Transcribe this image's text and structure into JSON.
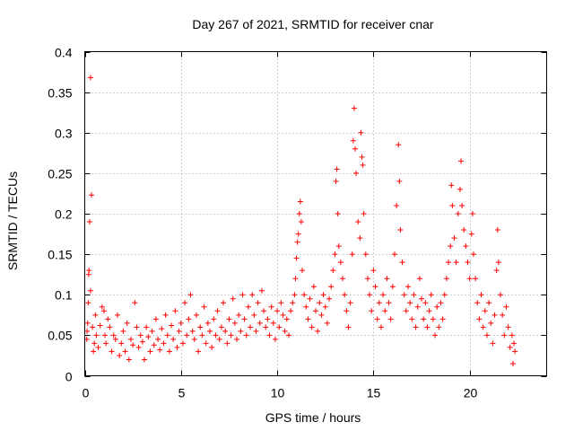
{
  "chart_data": {
    "type": "scatter",
    "title": "Day 267 of 2021, SRMTID for receiver cnar",
    "xlabel": "GPS time / hours",
    "ylabel": "SRMTID / TECUs",
    "xlim": [
      0,
      24
    ],
    "ylim": [
      0,
      0.4
    ],
    "xticks": [
      0,
      5,
      10,
      15,
      20
    ],
    "yticks": [
      0,
      0.05,
      0.1,
      0.15,
      0.2,
      0.25,
      0.3,
      0.35,
      0.4
    ],
    "xtick_labels": [
      "0",
      "5",
      "10",
      "15",
      "20"
    ],
    "ytick_labels": [
      "0",
      "0.05",
      "0.1",
      "0.15",
      "0.2",
      "0.25",
      "0.3",
      "0.35",
      "0.4"
    ],
    "grid": true,
    "marker": "+",
    "color": "#ff0000",
    "series": [
      {
        "name": "SRMTID",
        "points": [
          [
            0.1,
            0.045
          ],
          [
            0.12,
            0.055
          ],
          [
            0.15,
            0.065
          ],
          [
            0.18,
            0.09
          ],
          [
            0.2,
            0.125
          ],
          [
            0.22,
            0.13
          ],
          [
            0.25,
            0.19
          ],
          [
            0.3,
            0.368
          ],
          [
            0.3,
            0.105
          ],
          [
            0.35,
            0.223
          ],
          [
            0.4,
            0.06
          ],
          [
            0.45,
            0.03
          ],
          [
            0.5,
            0.04
          ],
          [
            0.55,
            0.075
          ],
          [
            0.6,
            0.05
          ],
          [
            0.7,
            0.035
          ],
          [
            0.8,
            0.062
          ],
          [
            0.9,
            0.085
          ],
          [
            1.0,
            0.08
          ],
          [
            1.05,
            0.05
          ],
          [
            1.1,
            0.04
          ],
          [
            1.2,
            0.07
          ],
          [
            1.3,
            0.06
          ],
          [
            1.4,
            0.03
          ],
          [
            1.5,
            0.05
          ],
          [
            1.6,
            0.045
          ],
          [
            1.7,
            0.075
          ],
          [
            1.8,
            0.025
          ],
          [
            1.9,
            0.04
          ],
          [
            2.0,
            0.055
          ],
          [
            2.1,
            0.03
          ],
          [
            2.2,
            0.065
          ],
          [
            2.3,
            0.02
          ],
          [
            2.4,
            0.045
          ],
          [
            2.5,
            0.038
          ],
          [
            2.6,
            0.09
          ],
          [
            2.7,
            0.06
          ],
          [
            2.8,
            0.035
          ],
          [
            2.9,
            0.05
          ],
          [
            3.0,
            0.042
          ],
          [
            3.1,
            0.02
          ],
          [
            3.2,
            0.06
          ],
          [
            3.3,
            0.048
          ],
          [
            3.4,
            0.03
          ],
          [
            3.5,
            0.055
          ],
          [
            3.6,
            0.038
          ],
          [
            3.7,
            0.07
          ],
          [
            3.8,
            0.045
          ],
          [
            3.9,
            0.032
          ],
          [
            4.0,
            0.058
          ],
          [
            4.1,
            0.04
          ],
          [
            4.2,
            0.075
          ],
          [
            4.3,
            0.05
          ],
          [
            4.4,
            0.03
          ],
          [
            4.5,
            0.062
          ],
          [
            4.6,
            0.045
          ],
          [
            4.7,
            0.08
          ],
          [
            4.8,
            0.035
          ],
          [
            4.9,
            0.055
          ],
          [
            5.0,
            0.065
          ],
          [
            5.1,
            0.04
          ],
          [
            5.2,
            0.09
          ],
          [
            5.3,
            0.05
          ],
          [
            5.4,
            0.07
          ],
          [
            5.5,
            0.1
          ],
          [
            5.6,
            0.055
          ],
          [
            5.7,
            0.045
          ],
          [
            5.8,
            0.075
          ],
          [
            5.9,
            0.03
          ],
          [
            6.0,
            0.06
          ],
          [
            6.1,
            0.05
          ],
          [
            6.2,
            0.085
          ],
          [
            6.3,
            0.04
          ],
          [
            6.4,
            0.065
          ],
          [
            6.5,
            0.055
          ],
          [
            6.6,
            0.035
          ],
          [
            6.7,
            0.07
          ],
          [
            6.8,
            0.05
          ],
          [
            6.9,
            0.08
          ],
          [
            7.0,
            0.045
          ],
          [
            7.1,
            0.06
          ],
          [
            7.2,
            0.09
          ],
          [
            7.3,
            0.055
          ],
          [
            7.4,
            0.04
          ],
          [
            7.5,
            0.07
          ],
          [
            7.6,
            0.05
          ],
          [
            7.7,
            0.095
          ],
          [
            7.8,
            0.065
          ],
          [
            7.9,
            0.045
          ],
          [
            8.0,
            0.075
          ],
          [
            8.1,
            0.055
          ],
          [
            8.2,
            0.1
          ],
          [
            8.3,
            0.07
          ],
          [
            8.4,
            0.05
          ],
          [
            8.5,
            0.085
          ],
          [
            8.6,
            0.06
          ],
          [
            8.7,
            0.1
          ],
          [
            8.8,
            0.075
          ],
          [
            8.9,
            0.055
          ],
          [
            9.0,
            0.09
          ],
          [
            9.1,
            0.065
          ],
          [
            9.2,
            0.105
          ],
          [
            9.3,
            0.08
          ],
          [
            9.4,
            0.06
          ],
          [
            9.5,
            0.07
          ],
          [
            9.6,
            0.05
          ],
          [
            9.7,
            0.085
          ],
          [
            9.8,
            0.065
          ],
          [
            9.9,
            0.045
          ],
          [
            10.0,
            0.08
          ],
          [
            10.1,
            0.06
          ],
          [
            10.2,
            0.09
          ],
          [
            10.3,
            0.075
          ],
          [
            10.4,
            0.055
          ],
          [
            10.5,
            0.07
          ],
          [
            10.6,
            0.05
          ],
          [
            10.7,
            0.08
          ],
          [
            10.8,
            0.09
          ],
          [
            10.9,
            0.1
          ],
          [
            10.95,
            0.12
          ],
          [
            11.0,
            0.145
          ],
          [
            11.05,
            0.165
          ],
          [
            11.1,
            0.175
          ],
          [
            11.15,
            0.2
          ],
          [
            11.2,
            0.215
          ],
          [
            11.25,
            0.19
          ],
          [
            11.3,
            0.13
          ],
          [
            11.4,
            0.1
          ],
          [
            11.5,
            0.085
          ],
          [
            11.6,
            0.07
          ],
          [
            11.7,
            0.095
          ],
          [
            11.8,
            0.06
          ],
          [
            11.9,
            0.11
          ],
          [
            12.0,
            0.08
          ],
          [
            12.1,
            0.055
          ],
          [
            12.2,
            0.09
          ],
          [
            12.3,
            0.075
          ],
          [
            12.4,
            0.1
          ],
          [
            12.5,
            0.085
          ],
          [
            12.6,
            0.065
          ],
          [
            12.7,
            0.095
          ],
          [
            12.8,
            0.11
          ],
          [
            12.9,
            0.13
          ],
          [
            13.0,
            0.15
          ],
          [
            13.05,
            0.24
          ],
          [
            13.1,
            0.255
          ],
          [
            13.15,
            0.2
          ],
          [
            13.2,
            0.16
          ],
          [
            13.3,
            0.14
          ],
          [
            13.4,
            0.12
          ],
          [
            13.5,
            0.1
          ],
          [
            13.6,
            0.08
          ],
          [
            13.7,
            0.06
          ],
          [
            13.8,
            0.09
          ],
          [
            13.9,
            0.15
          ],
          [
            13.95,
            0.29
          ],
          [
            14.0,
            0.33
          ],
          [
            14.05,
            0.28
          ],
          [
            14.1,
            0.25
          ],
          [
            14.2,
            0.19
          ],
          [
            14.3,
            0.17
          ],
          [
            14.35,
            0.3
          ],
          [
            14.4,
            0.27
          ],
          [
            14.45,
            0.26
          ],
          [
            14.5,
            0.2
          ],
          [
            14.6,
            0.15
          ],
          [
            14.7,
            0.12
          ],
          [
            14.8,
            0.1
          ],
          [
            14.9,
            0.08
          ],
          [
            15.0,
            0.13
          ],
          [
            15.1,
            0.11
          ],
          [
            15.2,
            0.07
          ],
          [
            15.3,
            0.09
          ],
          [
            15.4,
            0.06
          ],
          [
            15.5,
            0.1
          ],
          [
            15.6,
            0.08
          ],
          [
            15.7,
            0.12
          ],
          [
            15.8,
            0.09
          ],
          [
            15.9,
            0.07
          ],
          [
            16.0,
            0.11
          ],
          [
            16.1,
            0.15
          ],
          [
            16.2,
            0.21
          ],
          [
            16.3,
            0.285
          ],
          [
            16.35,
            0.24
          ],
          [
            16.4,
            0.18
          ],
          [
            16.5,
            0.14
          ],
          [
            16.6,
            0.1
          ],
          [
            16.7,
            0.08
          ],
          [
            16.8,
            0.11
          ],
          [
            16.9,
            0.09
          ],
          [
            17.0,
            0.07
          ],
          [
            17.1,
            0.1
          ],
          [
            17.2,
            0.06
          ],
          [
            17.3,
            0.085
          ],
          [
            17.4,
            0.12
          ],
          [
            17.5,
            0.095
          ],
          [
            17.6,
            0.07
          ],
          [
            17.7,
            0.09
          ],
          [
            17.8,
            0.06
          ],
          [
            17.9,
            0.08
          ],
          [
            18.0,
            0.1
          ],
          [
            18.1,
            0.07
          ],
          [
            18.2,
            0.05
          ],
          [
            18.3,
            0.085
          ],
          [
            18.4,
            0.06
          ],
          [
            18.5,
            0.09
          ],
          [
            18.6,
            0.07
          ],
          [
            18.7,
            0.1
          ],
          [
            18.8,
            0.12
          ],
          [
            18.9,
            0.14
          ],
          [
            19.0,
            0.16
          ],
          [
            19.05,
            0.235
          ],
          [
            19.1,
            0.21
          ],
          [
            19.2,
            0.17
          ],
          [
            19.3,
            0.14
          ],
          [
            19.4,
            0.2
          ],
          [
            19.5,
            0.23
          ],
          [
            19.55,
            0.265
          ],
          [
            19.6,
            0.21
          ],
          [
            19.7,
            0.18
          ],
          [
            19.8,
            0.16
          ],
          [
            19.9,
            0.14
          ],
          [
            20.0,
            0.12
          ],
          [
            20.1,
            0.175
          ],
          [
            20.15,
            0.2
          ],
          [
            20.2,
            0.15
          ],
          [
            20.3,
            0.12
          ],
          [
            20.4,
            0.09
          ],
          [
            20.5,
            0.07
          ],
          [
            20.6,
            0.1
          ],
          [
            20.7,
            0.06
          ],
          [
            20.8,
            0.08
          ],
          [
            20.9,
            0.05
          ],
          [
            21.0,
            0.09
          ],
          [
            21.1,
            0.065
          ],
          [
            21.2,
            0.04
          ],
          [
            21.3,
            0.075
          ],
          [
            21.4,
            0.13
          ],
          [
            21.45,
            0.18
          ],
          [
            21.5,
            0.14
          ],
          [
            21.6,
            0.1
          ],
          [
            21.7,
            0.075
          ],
          [
            21.8,
            0.05
          ],
          [
            21.9,
            0.085
          ],
          [
            22.0,
            0.06
          ],
          [
            22.1,
            0.035
          ],
          [
            22.2,
            0.05
          ],
          [
            22.25,
            0.015
          ],
          [
            22.3,
            0.04
          ],
          [
            22.35,
            0.03
          ]
        ]
      }
    ]
  }
}
